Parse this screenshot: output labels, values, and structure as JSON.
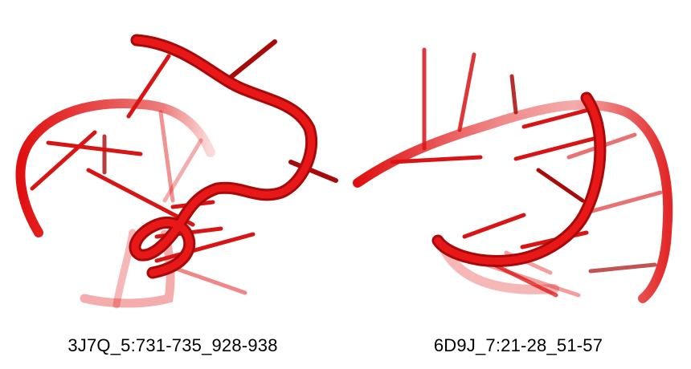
{
  "colors": {
    "backbone": "#e01010",
    "backbone_dark": "#a80a0a",
    "base": "#d81414",
    "base_faded": "#e87a7a"
  },
  "panels": [
    {
      "caption": "3J7Q_5:731-735_928-938",
      "image": "rna-3d-structure-red-cartoon"
    },
    {
      "caption": "6D9J_7:21-28_51-57",
      "image": "rna-3d-structure-red-cartoon"
    }
  ]
}
